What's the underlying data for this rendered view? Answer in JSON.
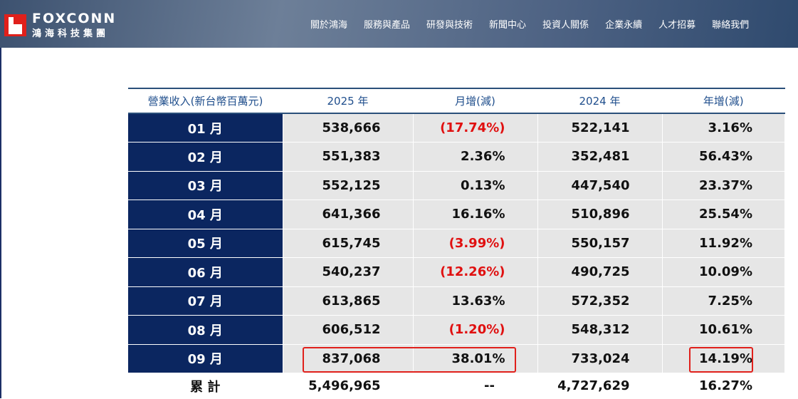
{
  "header": {
    "brand_en": "FOXCONN",
    "brand_zh": "鴻海科技集團",
    "nav": [
      "關於鴻海",
      "服務與產品",
      "研發與技術",
      "新聞中心",
      "投資人關係",
      "企業永續",
      "人才招募",
      "聯絡我們"
    ]
  },
  "table": {
    "headers": [
      "營業收入(新台幣百萬元)",
      "2025 年",
      "月增(減)",
      "2024 年",
      "年增(減)"
    ],
    "rows": [
      {
        "month": "01 月",
        "y2025": "538,666",
        "mom": "(17.74%)",
        "y2024": "522,141",
        "yoy": "3.16%"
      },
      {
        "month": "02 月",
        "y2025": "551,383",
        "mom": "2.36%",
        "y2024": "352,481",
        "yoy": "56.43%"
      },
      {
        "month": "03 月",
        "y2025": "552,125",
        "mom": "0.13%",
        "y2024": "447,540",
        "yoy": "23.37%"
      },
      {
        "month": "04 月",
        "y2025": "641,366",
        "mom": "16.16%",
        "y2024": "510,896",
        "yoy": "25.54%"
      },
      {
        "month": "05 月",
        "y2025": "615,745",
        "mom": "(3.99%)",
        "y2024": "550,157",
        "yoy": "11.92%"
      },
      {
        "month": "06 月",
        "y2025": "540,237",
        "mom": "(12.26%)",
        "y2024": "490,725",
        "yoy": "10.09%"
      },
      {
        "month": "07 月",
        "y2025": "613,865",
        "mom": "13.63%",
        "y2024": "572,352",
        "yoy": "7.25%"
      },
      {
        "month": "08 月",
        "y2025": "606,512",
        "mom": "(1.20%)",
        "y2024": "548,312",
        "yoy": "10.61%"
      },
      {
        "month": "09 月",
        "y2025": "837,068",
        "mom": "38.01%",
        "y2024": "733,024",
        "yoy": "14.19%"
      }
    ],
    "total": {
      "month": "累 計",
      "y2025": "5,496,965",
      "mom": "--",
      "y2024": "4,727,629",
      "yoy": "16.27%"
    }
  },
  "colors": {
    "navy": "#0b2660",
    "negative": "#e01010",
    "highlight": "#e0201b"
  }
}
